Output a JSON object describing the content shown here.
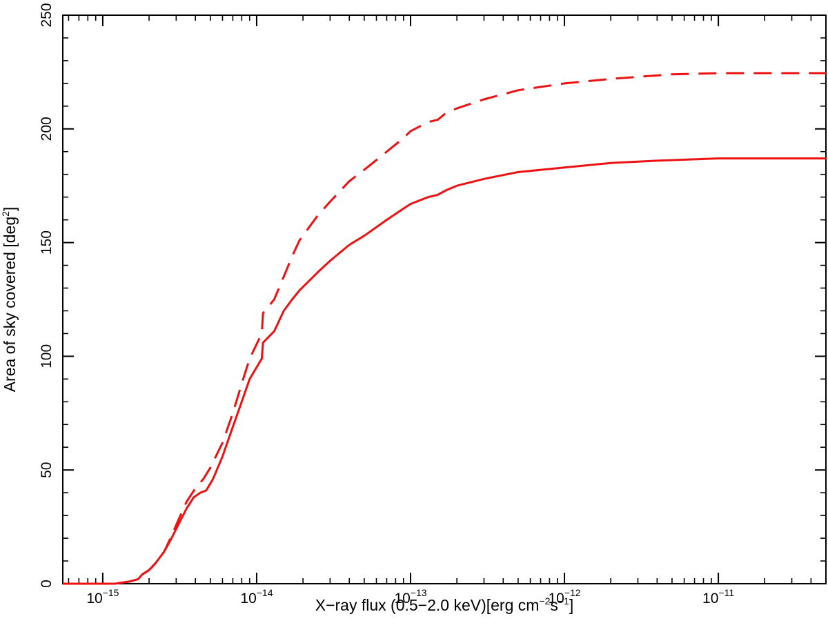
{
  "chart_data": {
    "type": "line",
    "title": "",
    "xlabel": {
      "prefix": "X−ray flux (0.5−2.0 keV)[erg cm",
      "sup1": "−2",
      "middle": "s",
      "sup2": "−1",
      "suffix": "]"
    },
    "ylabel": {
      "prefix": "Area of sky covered [deg",
      "sup": "2",
      "suffix": "]"
    },
    "x_scale": "log",
    "xlim": [
      5.5e-16,
      5e-11
    ],
    "ylim": [
      0,
      250
    ],
    "grid": false,
    "legend": "none",
    "color": "#ee1111",
    "x_ticks": [
      {
        "value": 1e-15,
        "base": "10",
        "exp": "−15"
      },
      {
        "value": 1e-14,
        "base": "10",
        "exp": "−14"
      },
      {
        "value": 1e-13,
        "base": "10",
        "exp": "−13"
      },
      {
        "value": 1e-12,
        "base": "10",
        "exp": "−12"
      },
      {
        "value": 1e-11,
        "base": "10",
        "exp": "−11"
      }
    ],
    "y_ticks": [
      {
        "value": 0,
        "label": "0"
      },
      {
        "value": 50,
        "label": "50"
      },
      {
        "value": 100,
        "label": "100"
      },
      {
        "value": 150,
        "label": "150"
      },
      {
        "value": 200,
        "label": "200"
      },
      {
        "value": 250,
        "label": "250"
      }
    ],
    "series": [
      {
        "style": "solid",
        "points": [
          [
            5.5e-16,
            0
          ],
          [
            1.2e-15,
            0
          ],
          [
            1.5e-15,
            1
          ],
          [
            1.7e-15,
            2
          ],
          [
            1.8e-15,
            4
          ],
          [
            2e-15,
            6
          ],
          [
            2.2e-15,
            9
          ],
          [
            2.5e-15,
            14
          ],
          [
            2.8e-15,
            20
          ],
          [
            3.1e-15,
            26
          ],
          [
            3.5e-15,
            33
          ],
          [
            3.9e-15,
            38
          ],
          [
            4.3e-15,
            40
          ],
          [
            4.7e-15,
            41
          ],
          [
            5.2e-15,
            46
          ],
          [
            6e-15,
            56
          ],
          [
            7e-15,
            69
          ],
          [
            8e-15,
            80
          ],
          [
            9e-15,
            90
          ],
          [
            1.08e-14,
            99
          ],
          [
            1.1e-14,
            106
          ],
          [
            1.3e-14,
            111
          ],
          [
            1.5e-14,
            120
          ],
          [
            1.7e-14,
            125
          ],
          [
            1.9e-14,
            129
          ],
          [
            2.5e-14,
            137
          ],
          [
            3e-14,
            142
          ],
          [
            4e-14,
            149
          ],
          [
            5e-14,
            153
          ],
          [
            7e-14,
            160
          ],
          [
            9e-14,
            165
          ],
          [
            1e-13,
            167
          ],
          [
            1.3e-13,
            170
          ],
          [
            1.5e-13,
            171
          ],
          [
            1.7e-13,
            173
          ],
          [
            2e-13,
            175
          ],
          [
            3e-13,
            178
          ],
          [
            5e-13,
            181
          ],
          [
            1e-12,
            183
          ],
          [
            2e-12,
            185
          ],
          [
            4e-12,
            186
          ],
          [
            1e-11,
            187
          ],
          [
            5e-11,
            187
          ]
        ]
      },
      {
        "style": "dashed",
        "points": [
          [
            5.5e-16,
            0
          ],
          [
            1.2e-15,
            0
          ],
          [
            1.5e-15,
            1
          ],
          [
            1.7e-15,
            2
          ],
          [
            1.8e-15,
            4
          ],
          [
            2e-15,
            6
          ],
          [
            2.2e-15,
            9
          ],
          [
            2.5e-15,
            14
          ],
          [
            2.8e-15,
            21
          ],
          [
            3.1e-15,
            28
          ],
          [
            3.5e-15,
            36
          ],
          [
            4e-15,
            42
          ],
          [
            4.5e-15,
            46
          ],
          [
            5e-15,
            51
          ],
          [
            6e-15,
            62
          ],
          [
            7e-15,
            75
          ],
          [
            8e-15,
            88
          ],
          [
            9e-15,
            99
          ],
          [
            1.08e-14,
            110
          ],
          [
            1.1e-14,
            119
          ],
          [
            1.3e-14,
            125
          ],
          [
            1.5e-14,
            135
          ],
          [
            1.7e-14,
            144
          ],
          [
            1.9e-14,
            151
          ],
          [
            2.5e-14,
            162
          ],
          [
            3e-14,
            168
          ],
          [
            4e-14,
            177
          ],
          [
            5e-14,
            182
          ],
          [
            7e-14,
            190
          ],
          [
            9e-14,
            196
          ],
          [
            1e-13,
            199
          ],
          [
            1.3e-13,
            203
          ],
          [
            1.5e-13,
            204
          ],
          [
            1.7e-13,
            207
          ],
          [
            2e-13,
            209
          ],
          [
            3e-13,
            213
          ],
          [
            5e-13,
            217
          ],
          [
            1e-12,
            220
          ],
          [
            2e-12,
            222
          ],
          [
            5e-12,
            224
          ],
          [
            1e-11,
            224.5
          ],
          [
            5e-11,
            224.5
          ]
        ]
      }
    ]
  }
}
